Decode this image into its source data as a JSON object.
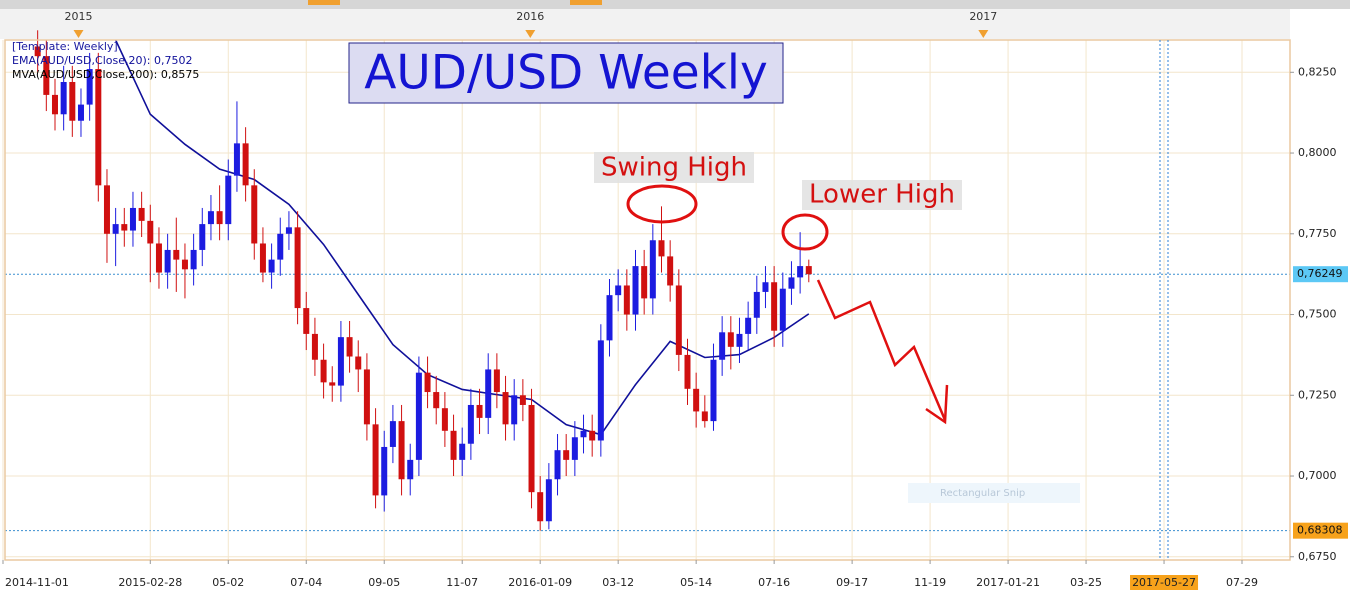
{
  "chart_data": {
    "type": "candlestick",
    "title": "AUD/USD Weekly",
    "template_label": "[Template: Weekly]",
    "x": [
      "2014-11-29",
      "2014-12-06",
      "2014-12-13",
      "2014-12-20",
      "2014-12-27",
      "2015-01-03",
      "2015-01-10",
      "2015-01-17",
      "2015-01-24",
      "2015-01-31",
      "2015-02-07",
      "2015-02-14",
      "2015-02-21",
      "2015-02-28",
      "2015-03-07",
      "2015-03-14",
      "2015-03-21",
      "2015-03-28",
      "2015-04-04",
      "2015-04-11",
      "2015-04-18",
      "2015-04-25",
      "2015-05-02",
      "2015-05-09",
      "2015-05-16",
      "2015-05-23",
      "2015-05-30",
      "2015-06-06",
      "2015-06-13",
      "2015-06-20",
      "2015-06-27",
      "2015-07-04",
      "2015-07-11",
      "2015-07-18",
      "2015-07-25",
      "2015-08-01",
      "2015-08-08",
      "2015-08-15",
      "2015-08-22",
      "2015-08-29",
      "2015-09-05",
      "2015-09-12",
      "2015-09-19",
      "2015-09-26",
      "2015-10-03",
      "2015-10-10",
      "2015-10-17",
      "2015-10-24",
      "2015-10-31",
      "2015-11-07",
      "2015-11-14",
      "2015-11-21",
      "2015-11-28",
      "2015-12-05",
      "2015-12-12",
      "2015-12-19",
      "2015-12-26",
      "2016-01-02",
      "2016-01-09",
      "2016-01-16",
      "2016-01-23",
      "2016-01-30",
      "2016-02-06",
      "2016-02-13",
      "2016-02-20",
      "2016-02-27",
      "2016-03-05",
      "2016-03-12",
      "2016-03-19",
      "2016-03-26",
      "2016-04-02",
      "2016-04-09",
      "2016-04-16",
      "2016-04-23",
      "2016-04-30",
      "2016-05-07",
      "2016-05-14",
      "2016-05-21",
      "2016-05-28",
      "2016-06-04",
      "2016-06-11",
      "2016-06-18",
      "2016-06-25",
      "2016-07-02",
      "2016-07-09",
      "2016-07-16",
      "2016-07-23",
      "2016-07-30",
      "2016-08-06",
      "2016-08-13"
    ],
    "open": [
      0.833,
      0.83,
      0.818,
      0.812,
      0.822,
      0.81,
      0.815,
      0.826,
      0.79,
      0.775,
      0.778,
      0.776,
      0.783,
      0.779,
      0.772,
      0.763,
      0.77,
      0.767,
      0.764,
      0.77,
      0.778,
      0.782,
      0.778,
      0.793,
      0.803,
      0.79,
      0.772,
      0.763,
      0.767,
      0.775,
      0.777,
      0.752,
      0.744,
      0.736,
      0.729,
      0.728,
      0.743,
      0.737,
      0.733,
      0.716,
      0.694,
      0.709,
      0.717,
      0.699,
      0.705,
      0.732,
      0.726,
      0.721,
      0.714,
      0.705,
      0.71,
      0.722,
      0.718,
      0.733,
      0.726,
      0.716,
      0.725,
      0.722,
      0.695,
      0.686,
      0.699,
      0.708,
      0.705,
      0.712,
      0.714,
      0.711,
      0.742,
      0.756,
      0.759,
      0.75,
      0.765,
      0.755,
      0.773,
      0.768,
      0.759,
      0.7375,
      0.727,
      0.72,
      0.717,
      0.736,
      0.7445,
      0.74,
      0.744,
      0.749,
      0.757,
      0.76,
      0.745,
      0.758,
      0.7615,
      0.765
    ],
    "high": [
      0.838,
      0.835,
      0.823,
      0.827,
      0.827,
      0.82,
      0.831,
      0.831,
      0.795,
      0.783,
      0.783,
      0.788,
      0.788,
      0.784,
      0.777,
      0.775,
      0.78,
      0.772,
      0.775,
      0.783,
      0.787,
      0.79,
      0.798,
      0.816,
      0.808,
      0.795,
      0.777,
      0.772,
      0.78,
      0.782,
      0.782,
      0.757,
      0.749,
      0.741,
      0.734,
      0.748,
      0.748,
      0.742,
      0.738,
      0.721,
      0.714,
      0.722,
      0.722,
      0.71,
      0.737,
      0.737,
      0.731,
      0.726,
      0.719,
      0.715,
      0.727,
      0.727,
      0.738,
      0.738,
      0.731,
      0.73,
      0.73,
      0.727,
      0.7,
      0.704,
      0.713,
      0.713,
      0.717,
      0.719,
      0.719,
      0.747,
      0.761,
      0.764,
      0.764,
      0.77,
      0.77,
      0.778,
      0.7835,
      0.773,
      0.764,
      0.7425,
      0.732,
      0.725,
      0.741,
      0.7495,
      0.7495,
      0.749,
      0.754,
      0.762,
      0.765,
      0.765,
      0.763,
      0.7665,
      0.7755,
      0.767
    ],
    "low": [
      0.825,
      0.813,
      0.807,
      0.807,
      0.805,
      0.805,
      0.81,
      0.785,
      0.766,
      0.765,
      0.771,
      0.771,
      0.774,
      0.76,
      0.758,
      0.758,
      0.757,
      0.755,
      0.759,
      0.765,
      0.773,
      0.773,
      0.773,
      0.788,
      0.785,
      0.767,
      0.76,
      0.758,
      0.762,
      0.77,
      0.747,
      0.739,
      0.731,
      0.724,
      0.723,
      0.723,
      0.732,
      0.726,
      0.711,
      0.69,
      0.689,
      0.704,
      0.694,
      0.694,
      0.7,
      0.721,
      0.716,
      0.709,
      0.7,
      0.7,
      0.705,
      0.713,
      0.713,
      0.721,
      0.711,
      0.711,
      0.717,
      0.69,
      0.68308,
      0.6835,
      0.694,
      0.7,
      0.7,
      0.707,
      0.706,
      0.706,
      0.737,
      0.751,
      0.745,
      0.745,
      0.75,
      0.75,
      0.763,
      0.754,
      0.7325,
      0.722,
      0.715,
      0.715,
      0.714,
      0.731,
      0.733,
      0.735,
      0.739,
      0.744,
      0.752,
      0.74,
      0.74,
      0.753,
      0.7565,
      0.76
    ],
    "close": [
      0.83,
      0.818,
      0.812,
      0.822,
      0.81,
      0.815,
      0.826,
      0.79,
      0.775,
      0.778,
      0.776,
      0.783,
      0.779,
      0.772,
      0.763,
      0.77,
      0.767,
      0.764,
      0.77,
      0.778,
      0.782,
      0.778,
      0.793,
      0.803,
      0.79,
      0.772,
      0.763,
      0.767,
      0.775,
      0.777,
      0.752,
      0.744,
      0.736,
      0.729,
      0.728,
      0.743,
      0.737,
      0.733,
      0.716,
      0.694,
      0.709,
      0.717,
      0.699,
      0.705,
      0.732,
      0.726,
      0.721,
      0.714,
      0.705,
      0.71,
      0.722,
      0.718,
      0.733,
      0.726,
      0.716,
      0.725,
      0.722,
      0.695,
      0.686,
      0.699,
      0.708,
      0.705,
      0.712,
      0.714,
      0.711,
      0.742,
      0.756,
      0.759,
      0.75,
      0.765,
      0.755,
      0.773,
      0.768,
      0.759,
      0.7375,
      0.727,
      0.72,
      0.717,
      0.736,
      0.7445,
      0.74,
      0.744,
      0.749,
      0.757,
      0.76,
      0.745,
      0.758,
      0.7615,
      0.765,
      0.76249
    ],
    "up_color": "#1c1ce0",
    "down_color": "#d01010",
    "overlays": [
      {
        "name": "EMA(AUD/USD,Close,20): 0,7502",
        "color": "#10109a",
        "x": [
          "2015-01-31",
          "2015-02-28",
          "2015-03-28",
          "2015-04-25",
          "2015-05-23",
          "2015-06-20",
          "2015-07-18",
          "2015-08-15",
          "2015-09-12",
          "2015-10-10",
          "2015-11-07",
          "2015-12-05",
          "2016-01-02",
          "2016-01-30",
          "2016-02-27",
          "2016-03-26",
          "2016-04-23",
          "2016-05-21",
          "2016-06-18",
          "2016-07-16",
          "2016-08-13"
        ],
        "values": [
          0.835,
          0.812,
          0.8027,
          0.795,
          0.7918,
          0.7841,
          0.7717,
          0.7562,
          0.7407,
          0.7314,
          0.7268,
          0.7252,
          0.7237,
          0.7159,
          0.7128,
          0.7283,
          0.7417,
          0.7367,
          0.7376,
          0.7429,
          0.7502
        ]
      },
      {
        "name": "MVA(AUD/USD,Close,200): 0,8575",
        "color": "#000000"
      }
    ],
    "xlim": [
      "2014-11-01",
      "2017-09-09"
    ],
    "xticks": [
      "2014-11-01",
      {
        "value": "2015-02-28",
        "label": "2015-02-28"
      },
      {
        "value": "2015-05-02",
        "label": "05-02"
      },
      {
        "value": "2015-07-04",
        "label": "07-04"
      },
      {
        "value": "2015-09-05",
        "label": "09-05"
      },
      {
        "value": "2015-11-07",
        "label": "11-07"
      },
      {
        "value": "2016-01-09",
        "label": "2016-01-09"
      },
      {
        "value": "2016-03-12",
        "label": "03-12"
      },
      {
        "value": "2016-05-14",
        "label": "05-14"
      },
      {
        "value": "2016-07-16",
        "label": "07-16"
      },
      {
        "value": "2016-09-17",
        "label": "09-17"
      },
      {
        "value": "2016-11-19",
        "label": "11-19"
      },
      {
        "value": "2017-01-21",
        "label": "2017-01-21"
      },
      {
        "value": "2017-03-25",
        "label": "03-25"
      },
      {
        "value": "2017-05-27",
        "label": "2017-05-27",
        "highlight": true
      },
      {
        "value": "2017-07-29",
        "label": "07-29"
      }
    ],
    "top_ticks": [
      {
        "value": "2015-01-01",
        "label": "2015"
      },
      {
        "value": "2016-01-01",
        "label": "2016"
      },
      {
        "value": "2017-01-01",
        "label": "2017"
      }
    ],
    "ylim": [
      0.674,
      0.835
    ],
    "yticks": [
      {
        "value": 0.675,
        "label": "0,6750"
      },
      {
        "value": 0.7,
        "label": "0,7000"
      },
      {
        "value": 0.725,
        "label": "0,7250"
      },
      {
        "value": 0.75,
        "label": "0,7500"
      },
      {
        "value": 0.775,
        "label": "0,7750"
      },
      {
        "value": 0.8,
        "label": "0,8000"
      },
      {
        "value": 0.825,
        "label": "0,8250"
      }
    ],
    "price_markers": [
      {
        "value": 0.76249,
        "label": "0,76249",
        "color": "#5cc8f5"
      },
      {
        "value": 0.68308,
        "label": "0,68308",
        "color": "#f7a21b"
      }
    ],
    "annotations": [
      "Swing High",
      "Lower High"
    ],
    "watermark": "Rectangular Snip",
    "grid": true
  }
}
